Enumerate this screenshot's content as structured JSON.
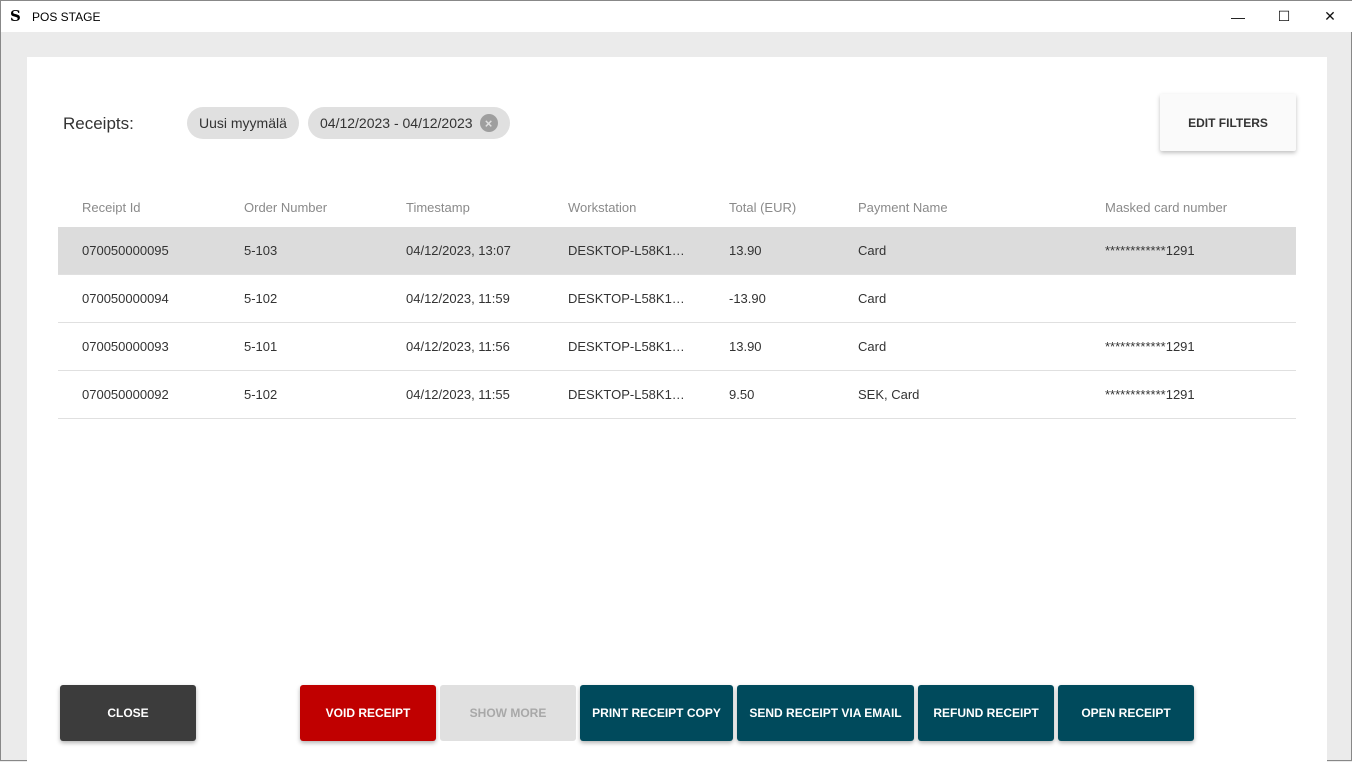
{
  "window": {
    "title": "POS STAGE",
    "minimize": "—",
    "maximize": "☐",
    "close": "✕"
  },
  "filters": {
    "label": "Receipts:",
    "store_chip": "Uusi myymälä",
    "date_chip": "04/12/2023 - 04/12/2023",
    "edit_filters": "EDIT FILTERS"
  },
  "table": {
    "columns": [
      "Receipt Id",
      "Order Number",
      "Timestamp",
      "Workstation",
      "Total (EUR)",
      "Payment Name",
      "Masked card number"
    ],
    "rows": [
      [
        "070050000095",
        "5-103",
        "04/12/2023, 13:07",
        "DESKTOP-L58K1…",
        "13.90",
        "Card",
        "************1291"
      ],
      [
        "070050000094",
        "5-102",
        "04/12/2023, 11:59",
        "DESKTOP-L58K1…",
        "-13.90",
        "Card",
        ""
      ],
      [
        "070050000093",
        "5-101",
        "04/12/2023, 11:56",
        "DESKTOP-L58K1…",
        "13.90",
        "Card",
        "************1291"
      ],
      [
        "070050000092",
        "5-102",
        "04/12/2023, 11:55",
        "DESKTOP-L58K1…",
        "9.50",
        "SEK, Card",
        "************1291"
      ]
    ],
    "selected_row": 0
  },
  "buttons": {
    "close": "CLOSE",
    "void": "VOID RECEIPT",
    "show_more": "SHOW MORE",
    "print_copy": "PRINT RECEIPT COPY",
    "send_email": "SEND RECEIPT VIA EMAIL",
    "refund": "REFUND RECEIPT",
    "open": "OPEN RECEIPT"
  },
  "colors": {
    "primary": "#004a5c",
    "danger": "#c00000",
    "dark": "#3c3c3c",
    "disabled": "#e0e0e0"
  }
}
